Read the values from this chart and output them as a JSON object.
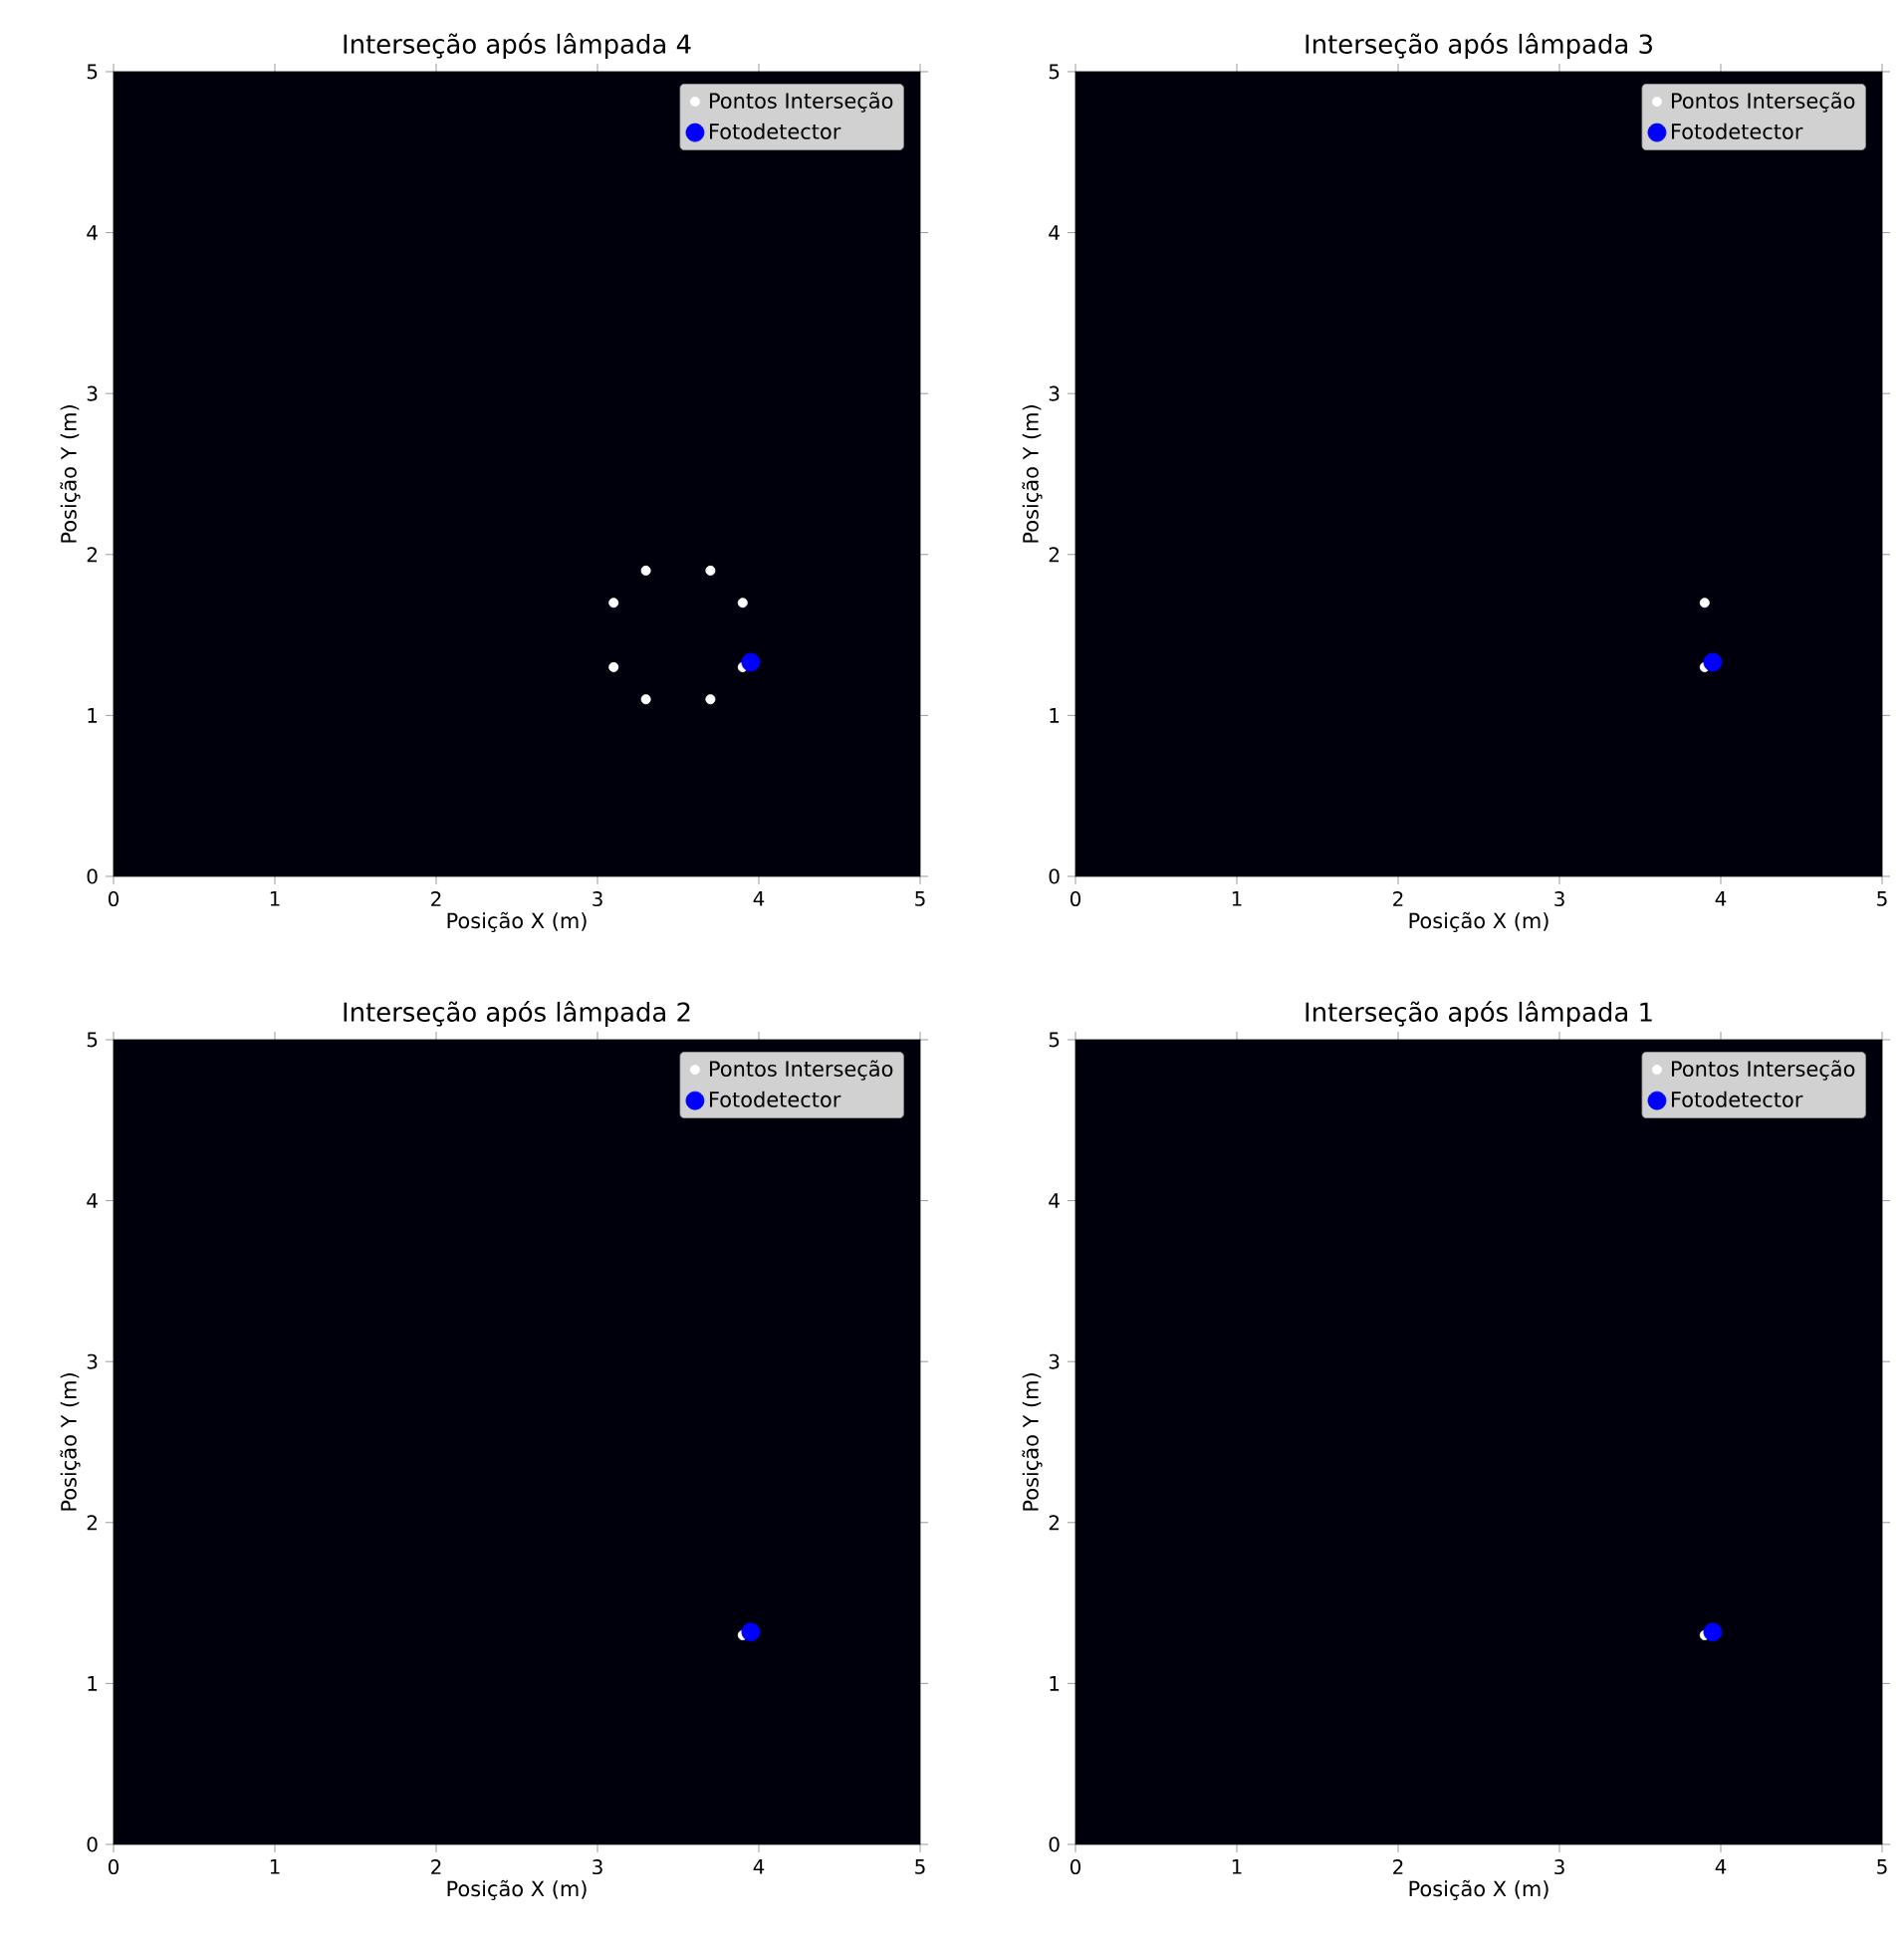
{
  "chart_data": [
    {
      "type": "scatter",
      "title": "Interseção após lâmpada 4",
      "xlabel": "Posição X (m)",
      "ylabel": "Posição Y (m)",
      "xlim": [
        0,
        5
      ],
      "ylim": [
        0,
        5
      ],
      "xticks": [
        0,
        1,
        2,
        3,
        4,
        5
      ],
      "yticks": [
        0,
        1,
        2,
        3,
        4,
        5
      ],
      "legend": "top right",
      "series": [
        {
          "name": "Pontos Interseção",
          "color": "#ffffff",
          "x": [
            3.3,
            3.7,
            3.1,
            3.9,
            3.1,
            3.9,
            3.3,
            3.7
          ],
          "values": [
            1.9,
            1.9,
            1.7,
            1.7,
            1.3,
            1.3,
            1.1,
            1.1
          ]
        },
        {
          "name": "Fotodetector",
          "color": "#0000ff",
          "x": [
            3.95
          ],
          "values": [
            1.33
          ]
        }
      ]
    },
    {
      "type": "scatter",
      "title": "Interseção após lâmpada 3",
      "xlabel": "Posição X (m)",
      "ylabel": "Posição Y (m)",
      "xlim": [
        0,
        5
      ],
      "ylim": [
        0,
        5
      ],
      "xticks": [
        0,
        1,
        2,
        3,
        4,
        5
      ],
      "yticks": [
        0,
        1,
        2,
        3,
        4,
        5
      ],
      "legend": "top right",
      "series": [
        {
          "name": "Pontos Interseção",
          "color": "#ffffff",
          "x": [
            3.9,
            3.9
          ],
          "values": [
            1.7,
            1.3
          ]
        },
        {
          "name": "Fotodetector",
          "color": "#0000ff",
          "x": [
            3.95
          ],
          "values": [
            1.33
          ]
        }
      ]
    },
    {
      "type": "scatter",
      "title": "Interseção após lâmpada 2",
      "xlabel": "Posição X (m)",
      "ylabel": "Posição Y (m)",
      "xlim": [
        0,
        5
      ],
      "ylim": [
        0,
        5
      ],
      "xticks": [
        0,
        1,
        2,
        3,
        4,
        5
      ],
      "yticks": [
        0,
        1,
        2,
        3,
        4,
        5
      ],
      "legend": "top right",
      "series": [
        {
          "name": "Pontos Interseção",
          "color": "#ffffff",
          "x": [
            3.9
          ],
          "values": [
            1.3
          ]
        },
        {
          "name": "Fotodetector",
          "color": "#0000ff",
          "x": [
            3.95
          ],
          "values": [
            1.32
          ]
        }
      ]
    },
    {
      "type": "scatter",
      "title": "Interseção após lâmpada 1",
      "xlabel": "Posição X (m)",
      "ylabel": "Posição Y (m)",
      "xlim": [
        0,
        5
      ],
      "ylim": [
        0,
        5
      ],
      "xticks": [
        0,
        1,
        2,
        3,
        4,
        5
      ],
      "yticks": [
        0,
        1,
        2,
        3,
        4,
        5
      ],
      "legend": "top right",
      "series": [
        {
          "name": "Pontos Interseção",
          "color": "#ffffff",
          "x": [
            3.9
          ],
          "values": [
            1.3
          ]
        },
        {
          "name": "Fotodetector",
          "color": "#0000ff",
          "x": [
            3.95
          ],
          "values": [
            1.32
          ]
        }
      ]
    }
  ]
}
